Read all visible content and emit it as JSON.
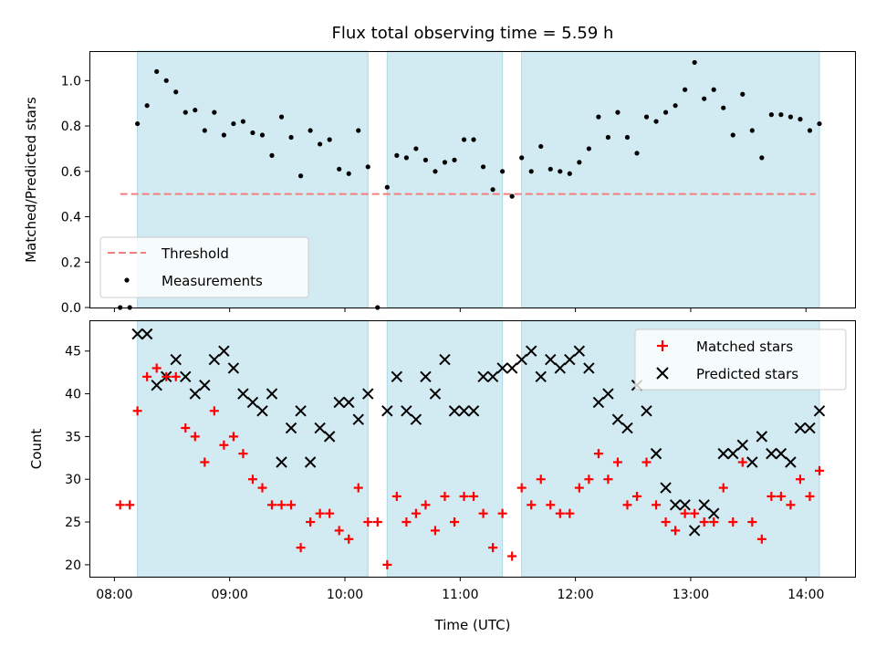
{
  "chart_data": [
    {
      "type": "scatter",
      "title": "Flux total observing time = 5.59 h",
      "xlabel": "",
      "ylabel": "Matched/Predicted stars",
      "ylim": [
        0.0,
        1.13
      ],
      "yticks": [
        "0.0",
        "0.2",
        "0.4",
        "0.6",
        "0.8",
        "1.0"
      ],
      "yticks_values": [
        0.0,
        0.2,
        0.4,
        0.6,
        0.8,
        1.0
      ],
      "legend_position": "lower-left",
      "threshold": {
        "name": "Threshold",
        "value": 0.5,
        "x_start": "08:03",
        "x_end": "14:05",
        "color": "#f08080",
        "style": "dashed"
      },
      "shaded_intervals": [
        [
          "08:12",
          "10:12"
        ],
        [
          "10:22",
          "11:22"
        ],
        [
          "11:32",
          "14:07"
        ]
      ],
      "shade_color": "#add8e6",
      "series": [
        {
          "name": "Measurements",
          "color": "#000000",
          "marker": "dot",
          "points": [
            [
              "08:03",
              0.0
            ],
            [
              "08:08",
              0.0
            ],
            [
              "08:12",
              0.81
            ],
            [
              "08:17",
              0.89
            ],
            [
              "08:22",
              1.04
            ],
            [
              "08:27",
              1.0
            ],
            [
              "08:32",
              0.95
            ],
            [
              "08:37",
              0.86
            ],
            [
              "08:42",
              0.87
            ],
            [
              "08:47",
              0.78
            ],
            [
              "08:52",
              0.86
            ],
            [
              "08:57",
              0.76
            ],
            [
              "09:02",
              0.81
            ],
            [
              "09:07",
              0.82
            ],
            [
              "09:12",
              0.77
            ],
            [
              "09:17",
              0.76
            ],
            [
              "09:22",
              0.67
            ],
            [
              "09:27",
              0.84
            ],
            [
              "09:32",
              0.75
            ],
            [
              "09:37",
              0.58
            ],
            [
              "09:42",
              0.78
            ],
            [
              "09:47",
              0.72
            ],
            [
              "09:52",
              0.74
            ],
            [
              "09:57",
              0.61
            ],
            [
              "10:02",
              0.59
            ],
            [
              "10:07",
              0.78
            ],
            [
              "10:12",
              0.62
            ],
            [
              "10:17",
              0.0
            ],
            [
              "10:22",
              0.53
            ],
            [
              "10:27",
              0.67
            ],
            [
              "10:32",
              0.66
            ],
            [
              "10:37",
              0.7
            ],
            [
              "10:42",
              0.65
            ],
            [
              "10:47",
              0.6
            ],
            [
              "10:52",
              0.64
            ],
            [
              "10:57",
              0.65
            ],
            [
              "11:02",
              0.74
            ],
            [
              "11:07",
              0.74
            ],
            [
              "11:12",
              0.62
            ],
            [
              "11:17",
              0.52
            ],
            [
              "11:22",
              0.6
            ],
            [
              "11:27",
              0.49
            ],
            [
              "11:32",
              0.66
            ],
            [
              "11:37",
              0.6
            ],
            [
              "11:42",
              0.71
            ],
            [
              "11:47",
              0.61
            ],
            [
              "11:52",
              0.6
            ],
            [
              "11:57",
              0.59
            ],
            [
              "12:02",
              0.64
            ],
            [
              "12:07",
              0.7
            ],
            [
              "12:12",
              0.84
            ],
            [
              "12:17",
              0.75
            ],
            [
              "12:22",
              0.86
            ],
            [
              "12:27",
              0.75
            ],
            [
              "12:32",
              0.68
            ],
            [
              "12:37",
              0.84
            ],
            [
              "12:42",
              0.82
            ],
            [
              "12:47",
              0.86
            ],
            [
              "12:52",
              0.89
            ],
            [
              "12:57",
              0.96
            ],
            [
              "13:02",
              1.08
            ],
            [
              "13:07",
              0.92
            ],
            [
              "13:12",
              0.96
            ],
            [
              "13:17",
              0.88
            ],
            [
              "13:22",
              0.76
            ],
            [
              "13:27",
              0.94
            ],
            [
              "13:32",
              0.78
            ],
            [
              "13:37",
              0.66
            ],
            [
              "13:42",
              0.85
            ],
            [
              "13:47",
              0.85
            ],
            [
              "13:52",
              0.84
            ],
            [
              "13:57",
              0.83
            ],
            [
              "14:02",
              0.78
            ],
            [
              "14:07",
              0.81
            ]
          ]
        }
      ],
      "legend": [
        {
          "label": "Threshold",
          "kind": "dashed-line",
          "color": "#f08080"
        },
        {
          "label": "Measurements",
          "kind": "dot",
          "color": "#000000"
        }
      ]
    },
    {
      "type": "scatter",
      "title": "",
      "xlabel": "Time (UTC)",
      "ylabel": "Count",
      "ylim": [
        18.6,
        48.6
      ],
      "yticks": [
        "20",
        "25",
        "30",
        "35",
        "40",
        "45"
      ],
      "yticks_values": [
        20,
        25,
        30,
        35,
        40,
        45
      ],
      "xlim": [
        "07:47",
        "14:26"
      ],
      "xticks": [
        "08:00",
        "09:00",
        "10:00",
        "11:00",
        "12:00",
        "13:00",
        "14:00"
      ],
      "legend_position": "upper-right",
      "shaded_intervals": [
        [
          "08:12",
          "10:12"
        ],
        [
          "10:22",
          "11:22"
        ],
        [
          "11:32",
          "14:07"
        ]
      ],
      "shade_color": "#add8e6",
      "series": [
        {
          "name": "Matched stars",
          "color": "#ff0000",
          "marker": "plus",
          "points": [
            [
              "08:03",
              27
            ],
            [
              "08:08",
              27
            ],
            [
              "08:12",
              38
            ],
            [
              "08:17",
              42
            ],
            [
              "08:22",
              43
            ],
            [
              "08:27",
              42
            ],
            [
              "08:32",
              42
            ],
            [
              "08:37",
              36
            ],
            [
              "08:42",
              35
            ],
            [
              "08:47",
              32
            ],
            [
              "08:52",
              38
            ],
            [
              "08:57",
              34
            ],
            [
              "09:02",
              35
            ],
            [
              "09:07",
              33
            ],
            [
              "09:12",
              30
            ],
            [
              "09:17",
              29
            ],
            [
              "09:22",
              27
            ],
            [
              "09:27",
              27
            ],
            [
              "09:32",
              27
            ],
            [
              "09:37",
              22
            ],
            [
              "09:42",
              25
            ],
            [
              "09:47",
              26
            ],
            [
              "09:52",
              26
            ],
            [
              "09:57",
              24
            ],
            [
              "10:02",
              23
            ],
            [
              "10:07",
              29
            ],
            [
              "10:12",
              25
            ],
            [
              "10:17",
              25
            ],
            [
              "10:22",
              20
            ],
            [
              "10:27",
              28
            ],
            [
              "10:32",
              25
            ],
            [
              "10:37",
              26
            ],
            [
              "10:42",
              27
            ],
            [
              "10:47",
              24
            ],
            [
              "10:52",
              28
            ],
            [
              "10:57",
              25
            ],
            [
              "11:02",
              28
            ],
            [
              "11:07",
              28
            ],
            [
              "11:12",
              26
            ],
            [
              "11:17",
              22
            ],
            [
              "11:22",
              26
            ],
            [
              "11:27",
              21
            ],
            [
              "11:32",
              29
            ],
            [
              "11:37",
              27
            ],
            [
              "11:42",
              30
            ],
            [
              "11:47",
              27
            ],
            [
              "11:52",
              26
            ],
            [
              "11:57",
              26
            ],
            [
              "12:02",
              29
            ],
            [
              "12:07",
              30
            ],
            [
              "12:12",
              33
            ],
            [
              "12:17",
              30
            ],
            [
              "12:22",
              32
            ],
            [
              "12:27",
              27
            ],
            [
              "12:32",
              28
            ],
            [
              "12:37",
              32
            ],
            [
              "12:42",
              27
            ],
            [
              "12:47",
              25
            ],
            [
              "12:52",
              24
            ],
            [
              "12:57",
              26
            ],
            [
              "13:02",
              26
            ],
            [
              "13:07",
              25
            ],
            [
              "13:12",
              25
            ],
            [
              "13:17",
              29
            ],
            [
              "13:22",
              25
            ],
            [
              "13:27",
              32
            ],
            [
              "13:32",
              25
            ],
            [
              "13:37",
              23
            ],
            [
              "13:42",
              28
            ],
            [
              "13:47",
              28
            ],
            [
              "13:52",
              27
            ],
            [
              "13:57",
              30
            ],
            [
              "14:02",
              28
            ],
            [
              "14:07",
              31
            ]
          ]
        },
        {
          "name": "Predicted stars",
          "color": "#000000",
          "marker": "x",
          "points": [
            [
              "08:12",
              47
            ],
            [
              "08:17",
              47
            ],
            [
              "08:22",
              41
            ],
            [
              "08:27",
              42
            ],
            [
              "08:32",
              44
            ],
            [
              "08:37",
              42
            ],
            [
              "08:42",
              40
            ],
            [
              "08:47",
              41
            ],
            [
              "08:52",
              44
            ],
            [
              "08:57",
              45
            ],
            [
              "09:02",
              43
            ],
            [
              "09:07",
              40
            ],
            [
              "09:12",
              39
            ],
            [
              "09:17",
              38
            ],
            [
              "09:22",
              40
            ],
            [
              "09:27",
              32
            ],
            [
              "09:32",
              36
            ],
            [
              "09:37",
              38
            ],
            [
              "09:42",
              32
            ],
            [
              "09:47",
              36
            ],
            [
              "09:52",
              35
            ],
            [
              "09:57",
              39
            ],
            [
              "10:02",
              39
            ],
            [
              "10:07",
              37
            ],
            [
              "10:12",
              40
            ],
            [
              "10:22",
              38
            ],
            [
              "10:27",
              42
            ],
            [
              "10:32",
              38
            ],
            [
              "10:37",
              37
            ],
            [
              "10:42",
              42
            ],
            [
              "10:47",
              40
            ],
            [
              "10:52",
              44
            ],
            [
              "10:57",
              38
            ],
            [
              "11:02",
              38
            ],
            [
              "11:07",
              38
            ],
            [
              "11:12",
              42
            ],
            [
              "11:17",
              42
            ],
            [
              "11:22",
              43
            ],
            [
              "11:27",
              43
            ],
            [
              "11:32",
              44
            ],
            [
              "11:37",
              45
            ],
            [
              "11:42",
              42
            ],
            [
              "11:47",
              44
            ],
            [
              "11:52",
              43
            ],
            [
              "11:57",
              44
            ],
            [
              "12:02",
              45
            ],
            [
              "12:07",
              43
            ],
            [
              "12:12",
              39
            ],
            [
              "12:17",
              40
            ],
            [
              "12:22",
              37
            ],
            [
              "12:27",
              36
            ],
            [
              "12:32",
              41
            ],
            [
              "12:37",
              38
            ],
            [
              "12:42",
              33
            ],
            [
              "12:47",
              29
            ],
            [
              "12:52",
              27
            ],
            [
              "12:57",
              27
            ],
            [
              "13:02",
              24
            ],
            [
              "13:07",
              27
            ],
            [
              "13:12",
              26
            ],
            [
              "13:17",
              33
            ],
            [
              "13:22",
              33
            ],
            [
              "13:27",
              34
            ],
            [
              "13:32",
              32
            ],
            [
              "13:37",
              35
            ],
            [
              "13:42",
              33
            ],
            [
              "13:47",
              33
            ],
            [
              "13:52",
              32
            ],
            [
              "13:57",
              36
            ],
            [
              "14:02",
              36
            ],
            [
              "14:07",
              38
            ]
          ]
        }
      ],
      "legend": [
        {
          "label": "Matched stars",
          "kind": "plus",
          "color": "#ff0000"
        },
        {
          "label": "Predicted stars",
          "kind": "x",
          "color": "#000000"
        }
      ]
    }
  ]
}
